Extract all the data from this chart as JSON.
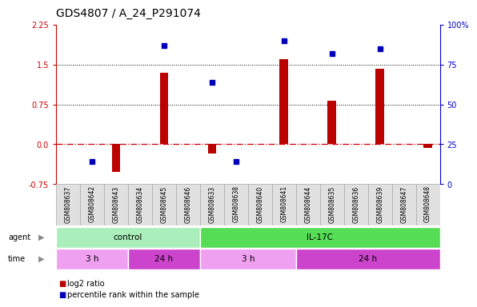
{
  "title": "GDS4807 / A_24_P291074",
  "samples": [
    "GSM808637",
    "GSM808642",
    "GSM808643",
    "GSM808634",
    "GSM808645",
    "GSM808646",
    "GSM808633",
    "GSM808638",
    "GSM808640",
    "GSM808641",
    "GSM808644",
    "GSM808635",
    "GSM808636",
    "GSM808639",
    "GSM808647",
    "GSM808648"
  ],
  "log2_ratio": [
    0.0,
    0.0,
    -0.52,
    0.0,
    1.35,
    0.0,
    -0.18,
    0.0,
    0.0,
    1.6,
    0.0,
    0.82,
    0.0,
    1.42,
    0.0,
    -0.07
  ],
  "percentile": [
    null,
    0.14,
    null,
    null,
    0.87,
    null,
    0.64,
    0.14,
    null,
    0.9,
    null,
    0.82,
    null,
    0.85,
    null,
    null
  ],
  "ylim_left": [
    -0.75,
    2.25
  ],
  "yticks_left": [
    -0.75,
    0.0,
    0.75,
    1.5,
    2.25
  ],
  "yticks_right": [
    0,
    25,
    50,
    75,
    100
  ],
  "yticks_right_labels": [
    "0",
    "25",
    "50",
    "75",
    "100%"
  ],
  "hlines": [
    0.75,
    1.5
  ],
  "bar_color": "#bb0000",
  "dot_color": "#0000bb",
  "zero_line_color": "#cc0000",
  "agent_groups": [
    {
      "label": "control",
      "start": 0,
      "end": 6,
      "color": "#aaeebb"
    },
    {
      "label": "IL-17C",
      "start": 6,
      "end": 16,
      "color": "#55dd55"
    }
  ],
  "time_groups": [
    {
      "label": "3 h",
      "start": 0,
      "end": 3,
      "color": "#f0a0f0"
    },
    {
      "label": "24 h",
      "start": 3,
      "end": 6,
      "color": "#cc44cc"
    },
    {
      "label": "3 h",
      "start": 6,
      "end": 10,
      "color": "#f0a0f0"
    },
    {
      "label": "24 h",
      "start": 10,
      "end": 16,
      "color": "#cc44cc"
    }
  ],
  "legend_items": [
    {
      "label": "log2 ratio",
      "color": "#bb0000"
    },
    {
      "label": "percentile rank within the sample",
      "color": "#0000bb"
    }
  ],
  "bar_width": 0.35,
  "title_fontsize": 10,
  "tick_fontsize": 7,
  "label_fontsize": 7.5,
  "sample_fontsize": 5.5,
  "bg_color": "#ffffff",
  "left_tick_color": "#cc0000",
  "right_tick_color": "#0000cc"
}
